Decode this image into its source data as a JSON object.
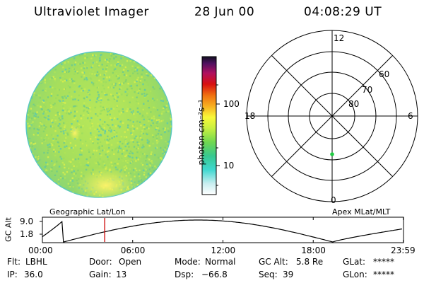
{
  "header": {
    "title": "Ultraviolet Imager",
    "date": "28 Jun 00",
    "time": "04:08:29 UT"
  },
  "colorbar": {
    "unit_label": "photon cm⁻²s⁻¹",
    "tick_100": "100",
    "tick_10": "10"
  },
  "polar_plot": {
    "label_top": "12",
    "label_left": "18",
    "label_right": "6",
    "label_bottom": "0",
    "ring_60": "60",
    "ring_70": "70",
    "ring_80": "80",
    "caption": "Apex MLat/MLT",
    "marker_color": "#22cc44"
  },
  "altitude_plot": {
    "axis_label": "GC Alt",
    "y_top": "9.0",
    "y_bottom": "1.8",
    "caption": "Geographic Lat/Lon",
    "x_ticks": [
      "00:00",
      "06:00",
      "12:00",
      "18:00",
      "23:59"
    ],
    "current_time_hours": 4.14,
    "marker_color": "#cc0000"
  },
  "status": {
    "flt_label": "Flt:",
    "flt_value": "LBHL",
    "door_label": "Door:",
    "door_value": "Open",
    "mode_label": "Mode:",
    "mode_value": "Normal",
    "gcalt_label": "GC Alt:",
    "gcalt_value": "5.8 Re",
    "glat_label": "GLat:",
    "glat_value": "*****",
    "ip_label": "IP:",
    "ip_value": "36.0",
    "gain_label": "Gain:",
    "gain_value": "13",
    "dsp_label": "Dsp:",
    "dsp_value": "−66.8",
    "seq_label": "Seq:",
    "seq_value": "39",
    "glon_label": "GLon:",
    "glon_value": "*****"
  }
}
